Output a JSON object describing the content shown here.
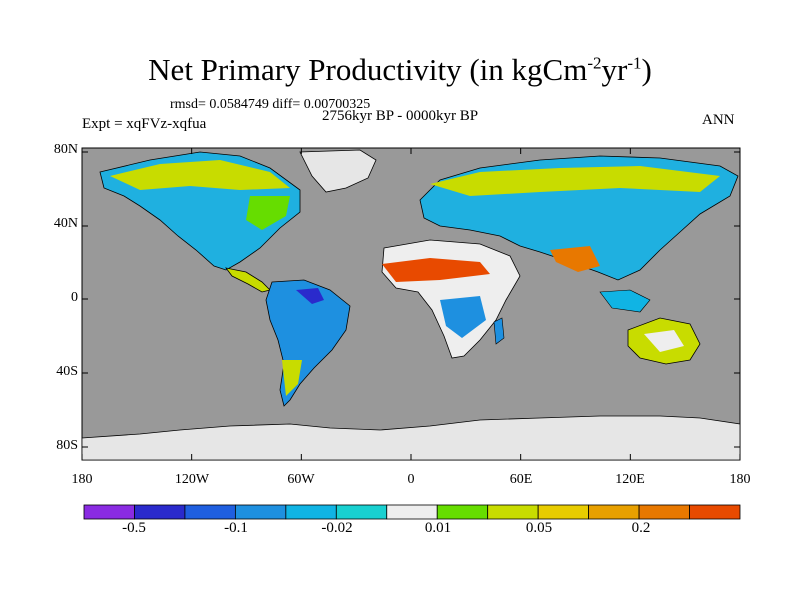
{
  "map": {
    "title": "Net Primary Productivity (in kgCm",
    "title_sup1": "-2",
    "title_mid": "yr",
    "title_sup2": "-1",
    "title_end": ")",
    "stats": "rmsd= 0.0584749 diff= 0.00700325",
    "period": "2756kyr BP - 0000kyr BP",
    "experiment": "Expt = xqFVz-xqfua",
    "season": "ANN",
    "ocean_color": "#999999",
    "ice_color": "#e6e6e6",
    "lat_labels": [
      "80N",
      "40N",
      "0",
      "40S",
      "80S"
    ],
    "lon_labels": [
      "180",
      "120W",
      "60W",
      "0",
      "60E",
      "120E",
      "180"
    ]
  },
  "colorbar": {
    "colors": [
      "#8a2be2",
      "#2a2acc",
      "#1f5fe0",
      "#1e90e0",
      "#10b4e4",
      "#18d0d0",
      "#eeeeee",
      "#66dd00",
      "#c8dc00",
      "#e8cc00",
      "#e8a000",
      "#e87800",
      "#e84a00"
    ],
    "labels": [
      "-0.5",
      "-0.1",
      "-0.02",
      "0.01",
      "0.05",
      "0.2"
    ]
  }
}
